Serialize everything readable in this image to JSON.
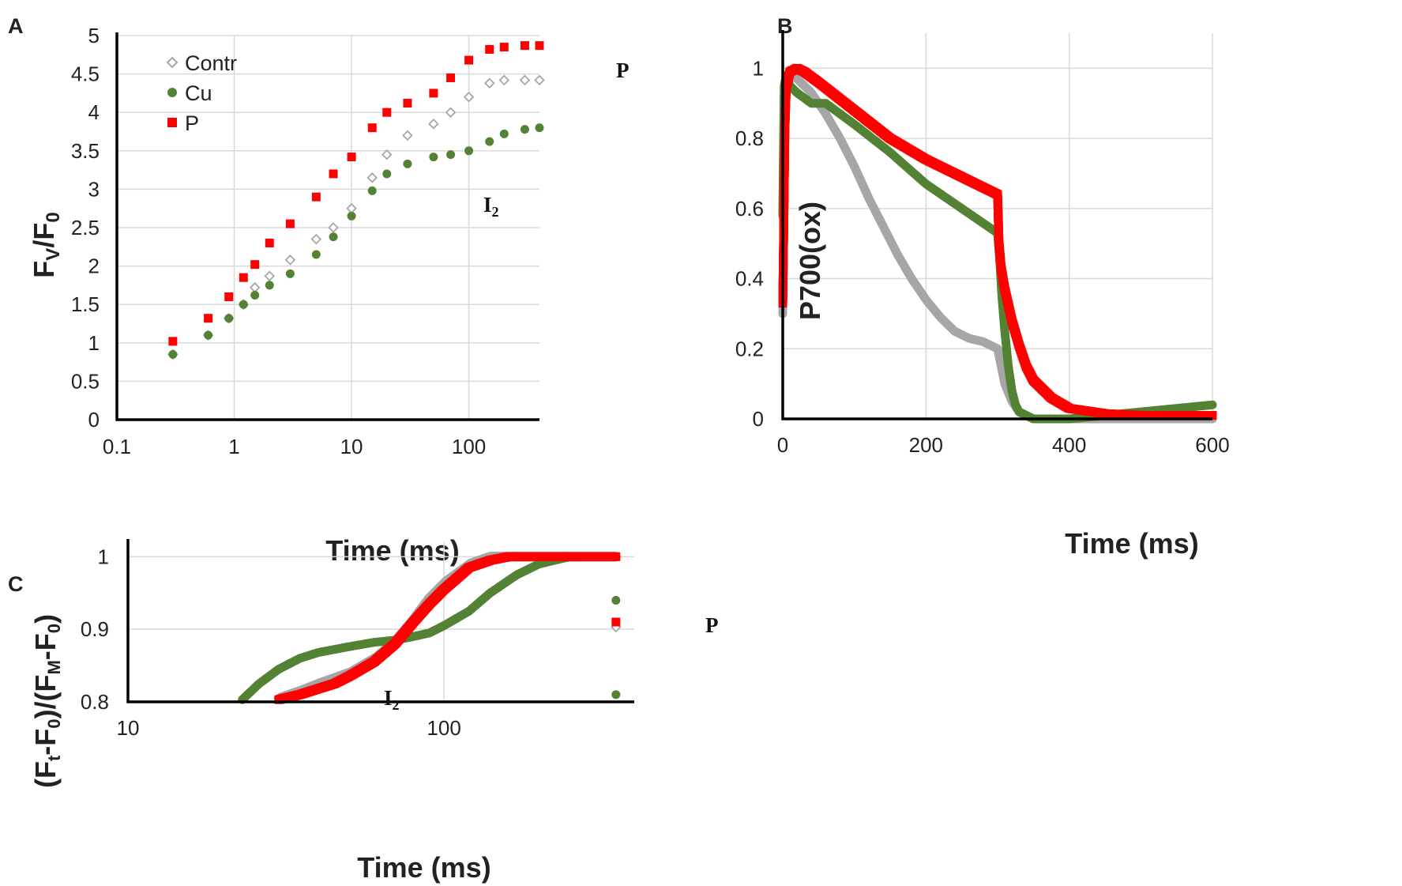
{
  "colors": {
    "contr": "#a6a6a6",
    "cu": "#548235",
    "p": "#ff0000",
    "grid": "#d9d9d9",
    "axis": "#000000"
  },
  "chart_data": [
    {
      "panel": "A",
      "type": "scatter",
      "x_scale": "log",
      "xlabel": "Time (ms)",
      "ylabel": {
        "main": "F",
        "sub1": "V",
        "slash": "/F",
        "sub2": "0"
      },
      "xlim": [
        0.1,
        400
      ],
      "ylim": [
        0,
        5
      ],
      "x_ticks": [
        0.1,
        1,
        10,
        100
      ],
      "x_tick_labels": [
        "0.1",
        "1",
        "10",
        "100"
      ],
      "y_ticks": [
        0,
        0.5,
        1,
        1.5,
        2,
        2.5,
        3,
        3.5,
        4,
        4.5,
        5
      ],
      "y_tick_labels": [
        "0",
        "0.5",
        "1",
        "1.5",
        "2",
        "2.5",
        "3",
        "3.5",
        "4",
        "4.5",
        "5"
      ],
      "grid": true,
      "legend": {
        "position": "top-left",
        "entries": [
          "Contr",
          "Cu",
          "P"
        ]
      },
      "series": [
        {
          "name": "Contr",
          "marker": "diamond-open",
          "x": [
            0.3,
            0.6,
            0.9,
            1.2,
            1.5,
            2,
            3,
            5,
            7,
            10,
            15,
            20,
            30,
            50,
            70,
            100,
            150,
            200,
            300,
            400
          ],
          "y": [
            0.85,
            1.1,
            1.32,
            1.5,
            1.72,
            1.87,
            2.08,
            2.35,
            2.5,
            2.75,
            3.15,
            3.45,
            3.7,
            3.85,
            4.0,
            4.2,
            4.38,
            4.42,
            4.42,
            4.42
          ]
        },
        {
          "name": "Cu",
          "marker": "circle",
          "x": [
            0.3,
            0.6,
            0.9,
            1.2,
            1.5,
            2,
            3,
            5,
            7,
            10,
            15,
            20,
            30,
            50,
            70,
            100,
            150,
            200,
            300,
            400
          ],
          "y": [
            0.85,
            1.1,
            1.32,
            1.5,
            1.62,
            1.75,
            1.9,
            2.15,
            2.38,
            2.65,
            2.98,
            3.2,
            3.33,
            3.42,
            3.45,
            3.5,
            3.62,
            3.72,
            3.78,
            3.8
          ]
        },
        {
          "name": "P",
          "marker": "square",
          "x": [
            0.3,
            0.6,
            0.9,
            1.2,
            1.5,
            2,
            3,
            5,
            7,
            10,
            15,
            20,
            30,
            50,
            70,
            100,
            150,
            200,
            300,
            400
          ],
          "y": [
            1.02,
            1.32,
            1.6,
            1.85,
            2.02,
            2.3,
            2.55,
            2.9,
            3.2,
            3.42,
            3.8,
            4.0,
            4.12,
            4.25,
            4.45,
            4.68,
            4.82,
            4.85,
            4.87,
            4.87
          ]
        }
      ],
      "annotations": [
        {
          "text": "P",
          "x": 420,
          "y": 4.62
        },
        {
          "text": "I",
          "sub": "2",
          "x": 33,
          "y": 3.0
        }
      ]
    },
    {
      "panel": "B",
      "type": "scatter",
      "xlabel": "Time (ms)",
      "ylabel": "P700(ox)",
      "xlim": [
        0,
        600
      ],
      "ylim": [
        0,
        1.1
      ],
      "x_ticks": [
        0,
        200,
        400,
        600
      ],
      "x_tick_labels": [
        "0",
        "200",
        "400",
        "600"
      ],
      "y_ticks": [
        0,
        0.2,
        0.4,
        0.6,
        0.8,
        1
      ],
      "y_tick_labels": [
        "0",
        "0.2",
        "0.4",
        "0.6",
        "0.8",
        "1"
      ],
      "grid": true,
      "series": [
        {
          "name": "Contr",
          "x": [
            0,
            3,
            10,
            20,
            40,
            60,
            80,
            100,
            120,
            140,
            160,
            180,
            200,
            220,
            240,
            260,
            280,
            300,
            305,
            310,
            320,
            330,
            340,
            350,
            400,
            450,
            500,
            550,
            600
          ],
          "y": [
            0.3,
            0.92,
            0.98,
            0.97,
            0.93,
            0.87,
            0.8,
            0.72,
            0.63,
            0.55,
            0.47,
            0.4,
            0.34,
            0.29,
            0.25,
            0.23,
            0.22,
            0.2,
            0.15,
            0.1,
            0.05,
            0.02,
            0.01,
            0.0,
            0.0,
            0.0,
            0.0,
            0.0,
            0.0
          ]
        },
        {
          "name": "Cu",
          "x": [
            0,
            2,
            5,
            10,
            20,
            40,
            60,
            80,
            100,
            150,
            200,
            250,
            300,
            303,
            306,
            310,
            315,
            320,
            325,
            330,
            340,
            350,
            400,
            450,
            500,
            550,
            600
          ],
          "y": [
            0.58,
            0.95,
            0.98,
            0.95,
            0.93,
            0.9,
            0.9,
            0.87,
            0.84,
            0.76,
            0.67,
            0.6,
            0.53,
            0.45,
            0.35,
            0.25,
            0.15,
            0.08,
            0.04,
            0.02,
            0.01,
            0.0,
            0.0,
            0.01,
            0.02,
            0.03,
            0.04
          ]
        },
        {
          "name": "P",
          "x": [
            0,
            1,
            2,
            3,
            5,
            10,
            20,
            30,
            50,
            100,
            150,
            200,
            250,
            280,
            300,
            302,
            305,
            310,
            320,
            330,
            340,
            350,
            375,
            400,
            450,
            500,
            550,
            600
          ],
          "y": [
            0.33,
            0.48,
            0.65,
            0.83,
            0.95,
            0.99,
            1.0,
            0.99,
            0.96,
            0.88,
            0.8,
            0.74,
            0.69,
            0.66,
            0.64,
            0.5,
            0.43,
            0.37,
            0.28,
            0.21,
            0.15,
            0.11,
            0.06,
            0.03,
            0.015,
            0.01,
            0.01,
            0.01
          ]
        }
      ]
    },
    {
      "panel": "C",
      "type": "scatter",
      "x_scale": "log",
      "xlabel": "Time (ms)",
      "ylabel": {
        "p1": "(F",
        "s1": "t",
        "p2": "-F",
        "s2": "0",
        "p3": ")/(F",
        "s3": "M",
        "p4": "-F",
        "s4": "0",
        "p5": ")"
      },
      "xlim": [
        10,
        400
      ],
      "ylim": [
        0.8,
        1.02
      ],
      "x_ticks": [
        10,
        100
      ],
      "x_tick_labels": [
        "10",
        "100"
      ],
      "y_ticks": [
        0.8,
        0.9,
        1
      ],
      "y_tick_labels": [
        "0.8",
        "0.9",
        "1"
      ],
      "grid": true,
      "series": [
        {
          "name": "Contr",
          "x": [
            30,
            35,
            40,
            50,
            60,
            70,
            80,
            90,
            100,
            120,
            140,
            170,
            200,
            250,
            300,
            350
          ],
          "y": [
            0.805,
            0.815,
            0.825,
            0.84,
            0.86,
            0.885,
            0.915,
            0.945,
            0.965,
            0.99,
            1.0,
            1.0,
            1.0,
            1.0,
            1.0,
            1.0
          ]
        },
        {
          "name": "Contr-end",
          "x": [
            350
          ],
          "y": [
            0.903
          ]
        },
        {
          "name": "Cu",
          "x": [
            23,
            26,
            30,
            35,
            40,
            50,
            60,
            70,
            80,
            90,
            100,
            120,
            140,
            170,
            200,
            250,
            300,
            350
          ],
          "y": [
            0.803,
            0.825,
            0.845,
            0.86,
            0.868,
            0.876,
            0.882,
            0.885,
            0.89,
            0.895,
            0.905,
            0.925,
            0.95,
            0.975,
            0.99,
            1.0,
            1.0,
            1.0
          ]
        },
        {
          "name": "Cu-end",
          "x": [
            350,
            350
          ],
          "y": [
            0.94,
            0.81
          ]
        },
        {
          "name": "P",
          "x": [
            30,
            35,
            40,
            45,
            50,
            60,
            70,
            80,
            90,
            100,
            120,
            140,
            160,
            200,
            250,
            300,
            350
          ],
          "y": [
            0.803,
            0.81,
            0.818,
            0.825,
            0.835,
            0.855,
            0.88,
            0.91,
            0.935,
            0.955,
            0.985,
            0.995,
            1.0,
            1.0,
            1.0,
            1.0,
            1.0
          ]
        },
        {
          "name": "P-end",
          "x": [
            350
          ],
          "y": [
            0.91
          ]
        }
      ],
      "annotations": [
        {
          "text": "P",
          "x": 420,
          "y": 1.003
        },
        {
          "text": "I",
          "sub": "2",
          "x": 45,
          "y": 0.895
        }
      ]
    }
  ]
}
